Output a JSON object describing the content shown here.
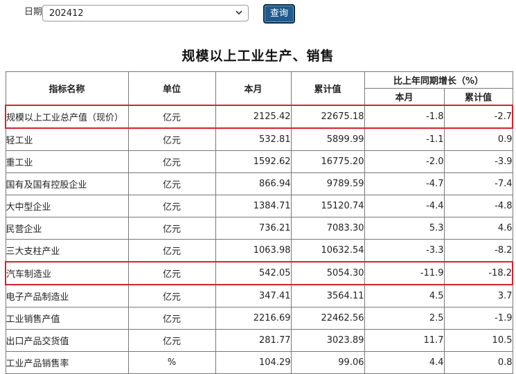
{
  "filter": {
    "date_label": "日期",
    "date_value": "202412",
    "query_label": "查询"
  },
  "report": {
    "title": "规模以上工业生产、销售",
    "headers": {
      "indicator": "指标名称",
      "unit": "单位",
      "month": "本月",
      "cumulative": "累计值",
      "yoy_group": "比上年同期增长（%）",
      "yoy_month": "本月",
      "yoy_cumulative": "累计值"
    },
    "highlight_color": "#d62030",
    "rows": [
      {
        "name": "规模以上工业总产值（现价）",
        "unit": "亿元",
        "month": "2125.42",
        "cumulative": "22675.18",
        "yoy_month": "-1.8",
        "yoy_cumulative": "-2.7",
        "highlighted": true
      },
      {
        "name": "轻工业",
        "unit": "亿元",
        "month": "532.81",
        "cumulative": "5899.99",
        "yoy_month": "-1.1",
        "yoy_cumulative": "0.9"
      },
      {
        "name": "重工业",
        "unit": "亿元",
        "month": "1592.62",
        "cumulative": "16775.20",
        "yoy_month": "-2.0",
        "yoy_cumulative": "-3.9"
      },
      {
        "name": "国有及国有控股企业",
        "unit": "亿元",
        "month": "866.94",
        "cumulative": "9789.59",
        "yoy_month": "-4.7",
        "yoy_cumulative": "-7.4"
      },
      {
        "name": "大中型企业",
        "unit": "亿元",
        "month": "1384.71",
        "cumulative": "15120.74",
        "yoy_month": "-4.4",
        "yoy_cumulative": "-4.8"
      },
      {
        "name": "民营企业",
        "unit": "亿元",
        "month": "736.21",
        "cumulative": "7083.30",
        "yoy_month": "5.3",
        "yoy_cumulative": "4.6"
      },
      {
        "name": "三大支柱产业",
        "unit": "亿元",
        "month": "1063.98",
        "cumulative": "10632.54",
        "yoy_month": "-3.3",
        "yoy_cumulative": "-8.2"
      },
      {
        "name": "汽车制造业",
        "unit": "亿元",
        "month": "542.05",
        "cumulative": "5054.30",
        "yoy_month": "-11.9",
        "yoy_cumulative": "-18.2",
        "highlighted": true
      },
      {
        "name": "电子产品制造业",
        "unit": "亿元",
        "month": "347.41",
        "cumulative": "3564.11",
        "yoy_month": "4.5",
        "yoy_cumulative": "3.7"
      },
      {
        "name": "工业销售产值",
        "unit": "亿元",
        "month": "2216.69",
        "cumulative": "22462.56",
        "yoy_month": "2.5",
        "yoy_cumulative": "-1.9"
      },
      {
        "name": "出口产品交货值",
        "unit": "亿元",
        "month": "281.77",
        "cumulative": "3023.89",
        "yoy_month": "11.7",
        "yoy_cumulative": "10.5"
      },
      {
        "name": "工业产品销售率",
        "unit": "%",
        "month": "104.29",
        "cumulative": "99.06",
        "yoy_month": "4.4",
        "yoy_cumulative": "0.8"
      }
    ]
  }
}
